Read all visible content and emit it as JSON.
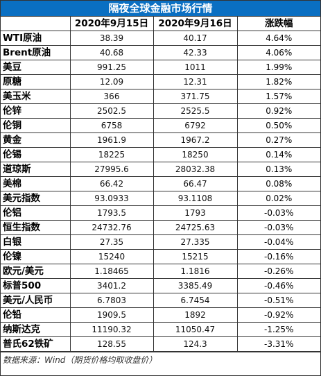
{
  "title": "隔夜全球金融市场行情",
  "headers": [
    "",
    "2020年9月15日",
    "2020年9月16日",
    "涨跌幅"
  ],
  "rows": [
    {
      "name": "WTI原油",
      "d1": "38.39",
      "d2": "40.17",
      "chg": "4.64%"
    },
    {
      "name": "Brent原油",
      "d1": "40.68",
      "d2": "42.33",
      "chg": "4.06%"
    },
    {
      "name": "美豆",
      "d1": "991.25",
      "d2": "1011",
      "chg": "1.99%"
    },
    {
      "name": "原糖",
      "d1": "12.09",
      "d2": "12.31",
      "chg": "1.82%"
    },
    {
      "name": "美玉米",
      "d1": "366",
      "d2": "371.75",
      "chg": "1.57%"
    },
    {
      "name": "伦锌",
      "d1": "2502.5",
      "d2": "2525.5",
      "chg": "0.92%"
    },
    {
      "name": "伦铜",
      "d1": "6758",
      "d2": "6792",
      "chg": "0.50%"
    },
    {
      "name": "黄金",
      "d1": "1961.9",
      "d2": "1967.2",
      "chg": "0.27%"
    },
    {
      "name": "伦锡",
      "d1": "18225",
      "d2": "18250",
      "chg": "0.14%"
    },
    {
      "name": "道琼斯",
      "d1": "27995.6",
      "d2": "28032.38",
      "chg": "0.13%"
    },
    {
      "name": "美棉",
      "d1": "66.42",
      "d2": "66.47",
      "chg": "0.08%"
    },
    {
      "name": "美元指数",
      "d1": "93.0933",
      "d2": "93.1108",
      "chg": "0.02%"
    },
    {
      "name": "伦铝",
      "d1": "1793.5",
      "d2": "1793",
      "chg": "-0.03%"
    },
    {
      "name": "恒生指数",
      "d1": "24732.76",
      "d2": "24725.63",
      "chg": "-0.03%"
    },
    {
      "name": "白银",
      "d1": "27.35",
      "d2": "27.335",
      "chg": "-0.04%"
    },
    {
      "name": "伦镍",
      "d1": "15240",
      "d2": "15215",
      "chg": "-0.16%"
    },
    {
      "name": "欧元/美元",
      "d1": "1.18465",
      "d2": "1.1816",
      "chg": "-0.26%"
    },
    {
      "name": "标普500",
      "d1": "3401.2",
      "d2": "3385.49",
      "chg": "-0.46%"
    },
    {
      "name": "美元/人民币",
      "d1": "6.7803",
      "d2": "6.7454",
      "chg": "-0.51%"
    },
    {
      "name": "伦铅",
      "d1": "1909.5",
      "d2": "1892",
      "chg": "-0.92%"
    },
    {
      "name": "纳斯达克",
      "d1": "11190.32",
      "d2": "11050.47",
      "chg": "-1.25%"
    },
    {
      "name": "普氏62铁矿",
      "d1": "128.55",
      "d2": "124.3",
      "chg": "-3.31%"
    }
  ],
  "footer": "数据来源：Wind（期货价格均取收盘价）",
  "colors": {
    "title_bg": "#0a6fc2",
    "title_fg": "#ffffff",
    "border": "#333333"
  }
}
